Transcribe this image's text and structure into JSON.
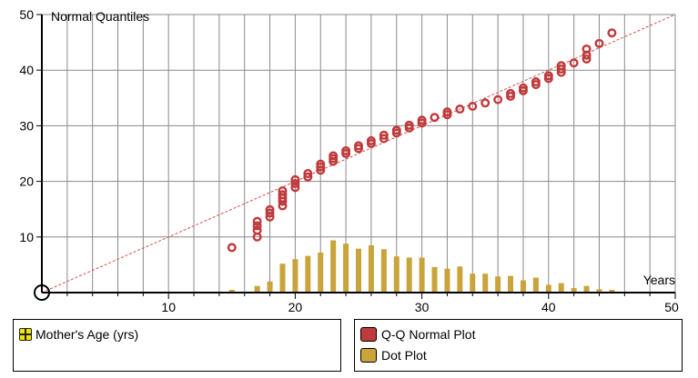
{
  "colors": {
    "qq": "#c0393b",
    "qq_edge": "#8e2a2c",
    "dot": "#c9a43a",
    "grid": "#8a8a8a",
    "ref_line": "#d05050"
  },
  "legend": {
    "attribute": {
      "icon": "attribute-grid-icon",
      "label": "Mother's Age (yrs)"
    },
    "items": [
      {
        "label": "Q-Q Normal Plot",
        "color": "#c0393b"
      },
      {
        "label": "Dot Plot",
        "color": "#c9a43a"
      }
    ]
  },
  "chart_data": {
    "type": "scatter",
    "xlabel": "Years",
    "ylabel": "Normal Quantiles",
    "xlim": [
      0,
      50
    ],
    "ylim": [
      0,
      50
    ],
    "x_ticks": [
      10,
      20,
      30,
      40,
      50
    ],
    "y_ticks": [
      10,
      20,
      30,
      40,
      50
    ],
    "grid": true,
    "reference_line": {
      "from": [
        0,
        0
      ],
      "to": [
        50,
        50
      ]
    },
    "series": [
      {
        "type": "scatter",
        "points": [
          [
            15,
            8.1
          ],
          [
            17,
            10.0
          ],
          [
            17,
            11.2
          ],
          [
            17,
            12.0
          ],
          [
            17,
            12.8
          ],
          [
            18,
            13.6
          ],
          [
            18,
            14.3
          ],
          [
            18,
            14.9
          ],
          [
            19,
            15.6
          ],
          [
            19,
            16.4
          ],
          [
            19,
            17.0
          ],
          [
            19,
            17.6
          ],
          [
            19,
            18.3
          ],
          [
            20,
            18.9
          ],
          [
            20,
            19.6
          ],
          [
            20,
            20.3
          ],
          [
            21,
            20.8
          ],
          [
            21,
            21.4
          ],
          [
            22,
            22.0
          ],
          [
            22,
            22.6
          ],
          [
            22,
            23.1
          ],
          [
            23,
            23.6
          ],
          [
            23,
            24.1
          ],
          [
            23,
            24.6
          ],
          [
            24,
            25.0
          ],
          [
            24,
            25.5
          ],
          [
            25,
            25.9
          ],
          [
            25,
            26.4
          ],
          [
            26,
            26.8
          ],
          [
            26,
            27.3
          ],
          [
            27,
            27.7
          ],
          [
            27,
            28.3
          ],
          [
            28,
            28.7
          ],
          [
            28,
            29.2
          ],
          [
            29,
            29.6
          ],
          [
            29,
            30.1
          ],
          [
            30,
            30.5
          ],
          [
            30,
            31.0
          ],
          [
            31,
            31.5
          ],
          [
            32,
            32.0
          ],
          [
            32,
            32.5
          ],
          [
            33,
            33.0
          ],
          [
            34,
            33.5
          ],
          [
            35,
            34.1
          ],
          [
            36,
            34.7
          ],
          [
            37,
            35.3
          ],
          [
            37,
            35.8
          ],
          [
            38,
            36.3
          ],
          [
            38,
            36.8
          ],
          [
            39,
            37.4
          ],
          [
            39,
            37.9
          ],
          [
            40,
            38.5
          ],
          [
            40,
            39.0
          ],
          [
            41,
            39.6
          ],
          [
            41,
            40.2
          ],
          [
            41,
            40.8
          ],
          [
            42,
            41.3
          ],
          [
            43,
            42.0
          ],
          [
            43,
            42.7
          ],
          [
            43,
            43.8
          ],
          [
            44,
            44.8
          ],
          [
            45,
            46.7
          ]
        ]
      },
      {
        "type": "bar",
        "x": [
          15,
          17,
          18,
          19,
          20,
          21,
          22,
          23,
          24,
          25,
          26,
          27,
          28,
          29,
          30,
          31,
          32,
          33,
          34,
          35,
          36,
          37,
          38,
          39,
          40,
          41,
          42,
          43,
          44,
          45
        ],
        "values": [
          0.5,
          1.2,
          2.0,
          5.2,
          6.0,
          6.6,
          7.2,
          9.4,
          8.8,
          7.9,
          8.5,
          7.8,
          6.5,
          6.3,
          6.3,
          4.6,
          4.3,
          4.7,
          3.4,
          3.4,
          2.9,
          3.0,
          2.2,
          2.7,
          1.4,
          1.7,
          0.8,
          1.2,
          0.6,
          0.5
        ]
      }
    ]
  }
}
